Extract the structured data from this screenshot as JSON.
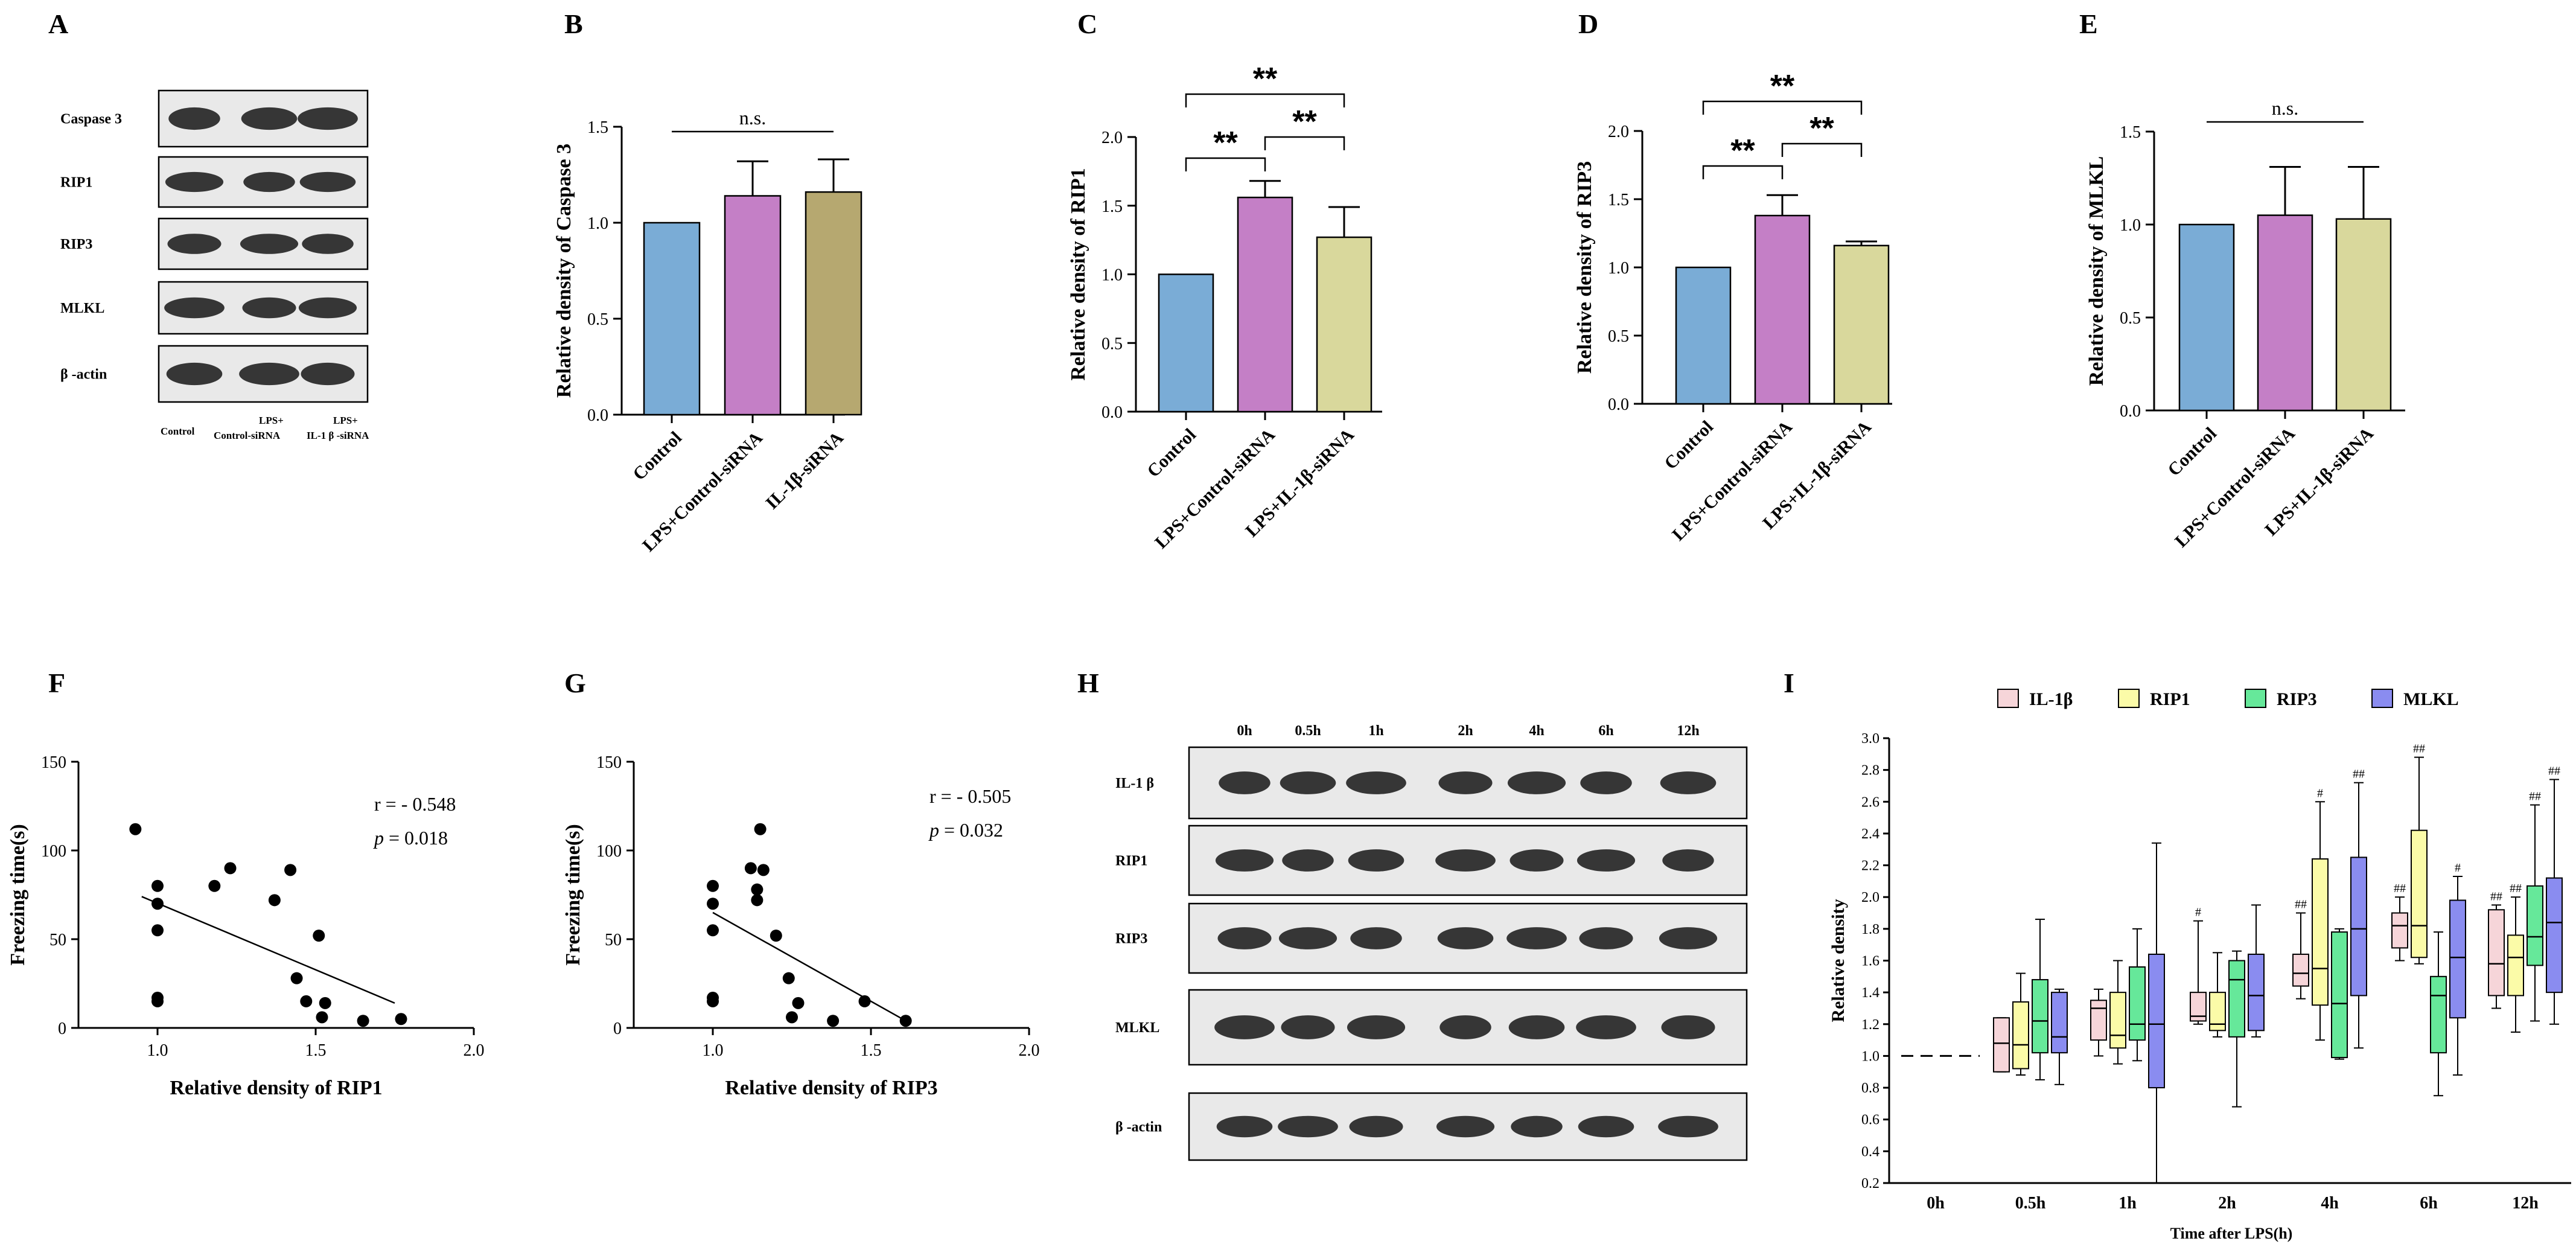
{
  "panel_labels": [
    "A",
    "B",
    "C",
    "D",
    "E",
    "F",
    "G",
    "H",
    "I"
  ],
  "blots": {
    "A": {
      "rows": [
        "Caspase 3",
        "RIP1",
        "RIP3",
        "MLKL",
        "β -actin"
      ],
      "lanes": [
        [
          "Control"
        ],
        [
          "LPS+",
          "Control-siRNA"
        ],
        [
          "LPS+",
          "IL-1 β -siRNA"
        ]
      ]
    },
    "H": {
      "rows": [
        "IL-1 β",
        "RIP1",
        "RIP3",
        "MLKL",
        "β -actin"
      ],
      "lanes": [
        "0h",
        "0.5h",
        "1h",
        "2h",
        "4h",
        "6h",
        "12h"
      ]
    }
  },
  "chart_data": [
    {
      "id": "B",
      "type": "bar",
      "categories": [
        "Control",
        "LPS+Control-siRNA",
        "IL-1β-siRNA"
      ],
      "values": [
        1.0,
        1.14,
        1.16
      ],
      "errors": [
        0,
        0.18,
        0.17
      ],
      "colors": [
        "#7aacd6",
        "#c47fc6",
        "#b6a870"
      ],
      "ylabel": "Relative density of Caspase 3",
      "ylim": [
        0,
        1.5
      ],
      "ticks": [
        "0.0",
        "0.5",
        "1.0",
        "1.5"
      ],
      "significance": [
        {
          "from": 0,
          "to": 2,
          "label": "n.s."
        }
      ]
    },
    {
      "id": "C",
      "type": "bar",
      "categories": [
        "Control",
        "LPS+Control-siRNA",
        "LPS+IL-1β-siRNA"
      ],
      "values": [
        1.0,
        1.56,
        1.27
      ],
      "errors": [
        0,
        0.12,
        0.22
      ],
      "colors": [
        "#7aacd6",
        "#c47fc6",
        "#d9d89c"
      ],
      "ylabel": "Relative density of RIP1",
      "ylim": [
        0,
        2.0
      ],
      "ticks": [
        "0.0",
        "0.5",
        "1.0",
        "1.5",
        "2.0"
      ],
      "significance": [
        {
          "from": 0,
          "to": 1,
          "label": "**"
        },
        {
          "from": 1,
          "to": 2,
          "label": "**"
        },
        {
          "from": 0,
          "to": 2,
          "label": "**"
        }
      ]
    },
    {
      "id": "D",
      "type": "bar",
      "categories": [
        "Control",
        "LPS+Control-siRNA",
        "LPS+IL-1β-siRNA"
      ],
      "values": [
        1.0,
        1.38,
        1.16
      ],
      "errors": [
        0,
        0.15,
        0.03
      ],
      "colors": [
        "#7aacd6",
        "#c47fc6",
        "#d9d89c"
      ],
      "ylabel": "Relative density of RIP3",
      "ylim": [
        0,
        2.0
      ],
      "ticks": [
        "0.0",
        "0.5",
        "1.0",
        "1.5",
        "2.0"
      ],
      "significance": [
        {
          "from": 0,
          "to": 1,
          "label": "**"
        },
        {
          "from": 1,
          "to": 2,
          "label": "**"
        },
        {
          "from": 0,
          "to": 2,
          "label": "**"
        }
      ]
    },
    {
      "id": "E",
      "type": "bar",
      "categories": [
        "Control",
        "LPS+Control-siRNA",
        "LPS+IL-1β-siRNA"
      ],
      "values": [
        1.0,
        1.05,
        1.03
      ],
      "errors": [
        0,
        0.26,
        0.28
      ],
      "colors": [
        "#7aacd6",
        "#c47fc6",
        "#d9d89c"
      ],
      "ylabel": "Relative density of MLKL",
      "ylim": [
        0,
        1.5
      ],
      "ticks": [
        "0.0",
        "0.5",
        "1.0",
        "1.5"
      ],
      "significance": [
        {
          "from": 0,
          "to": 2,
          "label": "n.s."
        }
      ]
    },
    {
      "id": "F",
      "type": "scatter",
      "xlabel": "Relative density of RIP1",
      "ylabel": "Freezing time(s)",
      "xlim": [
        0.75,
        2.0
      ],
      "ylim": [
        0,
        150
      ],
      "xticks": [
        "1.0",
        "1.5",
        "2.0"
      ],
      "yticks": [
        "0",
        "50",
        "100",
        "150"
      ],
      "points": [
        [
          0.93,
          112
        ],
        [
          1.0,
          80
        ],
        [
          1.0,
          70
        ],
        [
          1.0,
          55
        ],
        [
          1.0,
          17
        ],
        [
          1.0,
          15
        ],
        [
          1.18,
          80
        ],
        [
          1.23,
          90
        ],
        [
          1.37,
          72
        ],
        [
          1.42,
          89
        ],
        [
          1.44,
          28
        ],
        [
          1.47,
          15
        ],
        [
          1.51,
          52
        ],
        [
          1.52,
          6
        ],
        [
          1.53,
          14
        ],
        [
          1.65,
          4
        ],
        [
          1.77,
          5
        ]
      ],
      "fit": [
        [
          0.95,
          74
        ],
        [
          1.75,
          14
        ]
      ],
      "r_label": "r = - 0.548",
      "p_label": "p",
      "p_value": "= 0.018"
    },
    {
      "id": "G",
      "type": "scatter",
      "xlabel": "Relative density of RIP3",
      "ylabel": "Freezing time(s)",
      "xlim": [
        0.75,
        2.0
      ],
      "ylim": [
        0,
        150
      ],
      "xticks": [
        "1.0",
        "1.5",
        "2.0"
      ],
      "yticks": [
        "0",
        "50",
        "100",
        "150"
      ],
      "points": [
        [
          1.0,
          80
        ],
        [
          1.0,
          70
        ],
        [
          1.0,
          55
        ],
        [
          1.0,
          17
        ],
        [
          1.0,
          15
        ],
        [
          1.12,
          90
        ],
        [
          1.14,
          78
        ],
        [
          1.14,
          72
        ],
        [
          1.15,
          112
        ],
        [
          1.16,
          89
        ],
        [
          1.2,
          52
        ],
        [
          1.24,
          28
        ],
        [
          1.25,
          6
        ],
        [
          1.27,
          14
        ],
        [
          1.38,
          4
        ],
        [
          1.48,
          15
        ],
        [
          1.61,
          4
        ]
      ],
      "fit": [
        [
          1.0,
          65
        ],
        [
          1.6,
          5
        ]
      ],
      "r_label": "r = - 0.505",
      "p_label": "p",
      "p_value": "= 0.032"
    },
    {
      "id": "I",
      "type": "boxplot",
      "xlabel": "Time after LPS(h)",
      "ylabel": "Relative density",
      "categories": [
        "0h",
        "0.5h",
        "1h",
        "2h",
        "4h",
        "6h",
        "12h"
      ],
      "ylim": [
        0.2,
        3.0
      ],
      "yticks": [
        "0.2",
        "0.4",
        "0.6",
        "0.8",
        "1.0",
        "1.2",
        "1.4",
        "1.6",
        "1.8",
        "2.0",
        "2.2",
        "2.4",
        "2.6",
        "2.8",
        "3.0"
      ],
      "series": [
        {
          "name": "IL-1β",
          "color": "#f6d5d9",
          "boxes": [
            null,
            [
              0.9,
              0.9,
              1.08,
              1.24,
              1.24
            ],
            [
              1.0,
              1.1,
              1.3,
              1.35,
              1.42
            ],
            [
              1.2,
              1.22,
              1.25,
              1.4,
              1.85
            ],
            [
              1.36,
              1.44,
              1.52,
              1.64,
              1.9
            ],
            [
              1.6,
              1.68,
              1.82,
              1.9,
              2.0
            ],
            [
              1.3,
              1.38,
              1.58,
              1.92,
              1.95
            ]
          ],
          "marks": [
            null,
            "",
            "",
            "#",
            "##",
            "##",
            "##"
          ]
        },
        {
          "name": "RIP1",
          "color": "#fbfba8",
          "boxes": [
            null,
            [
              0.88,
              0.92,
              1.07,
              1.34,
              1.52
            ],
            [
              0.95,
              1.05,
              1.13,
              1.4,
              1.6
            ],
            [
              1.12,
              1.16,
              1.2,
              1.4,
              1.65
            ],
            [
              1.1,
              1.32,
              1.55,
              2.24,
              2.6
            ],
            [
              1.58,
              1.62,
              1.82,
              2.42,
              2.88
            ],
            [
              1.15,
              1.38,
              1.62,
              1.76,
              2.0
            ]
          ],
          "marks": [
            null,
            "",
            "",
            "",
            "#",
            "##",
            "##"
          ]
        },
        {
          "name": "RIP3",
          "color": "#66e89a",
          "boxes": [
            null,
            [
              0.85,
              1.02,
              1.22,
              1.48,
              1.86
            ],
            [
              0.97,
              1.1,
              1.2,
              1.56,
              1.8
            ],
            [
              0.68,
              1.12,
              1.48,
              1.6,
              1.66
            ],
            [
              0.98,
              0.99,
              1.33,
              1.78,
              1.8
            ],
            [
              0.75,
              1.02,
              1.38,
              1.5,
              1.78
            ],
            [
              1.22,
              1.57,
              1.75,
              2.07,
              2.58
            ]
          ],
          "marks": [
            null,
            "",
            "",
            "",
            "",
            "",
            "##"
          ]
        },
        {
          "name": "MLKL",
          "color": "#8a8cf0",
          "boxes": [
            null,
            [
              0.82,
              1.02,
              1.12,
              1.4,
              1.42
            ],
            [
              0.2,
              0.8,
              1.2,
              1.64,
              2.34
            ],
            [
              1.12,
              1.16,
              1.38,
              1.64,
              1.95
            ],
            [
              1.05,
              1.38,
              1.8,
              2.25,
              2.72
            ],
            [
              0.88,
              1.24,
              1.62,
              1.98,
              2.13
            ],
            [
              1.2,
              1.4,
              1.84,
              2.12,
              2.74
            ]
          ],
          "marks": [
            null,
            "",
            "",
            "",
            "##",
            "#",
            "##"
          ]
        }
      ],
      "baseline": 1.0
    }
  ]
}
